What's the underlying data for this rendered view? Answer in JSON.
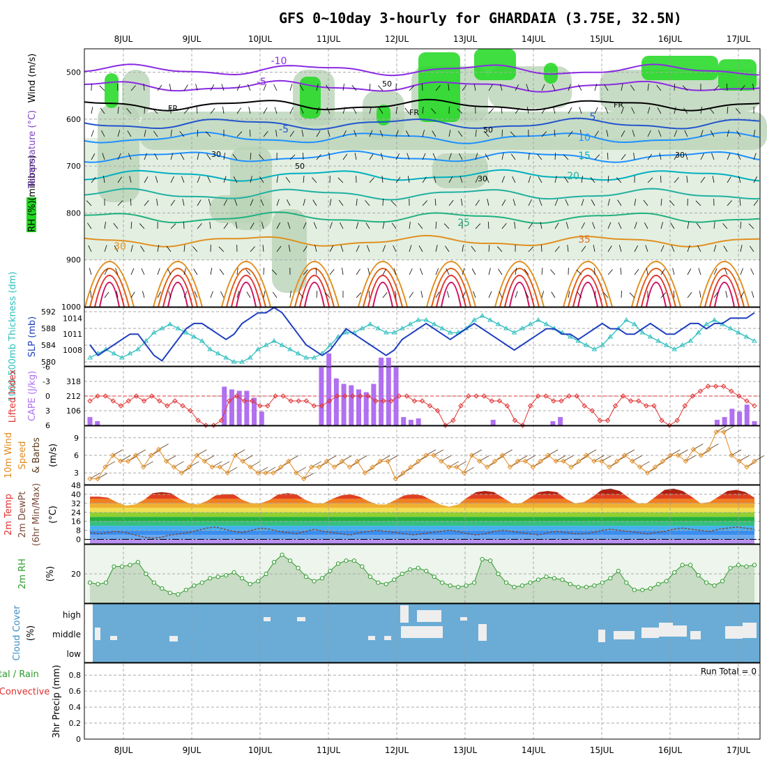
{
  "chart_data": {
    "type": "meteogram",
    "title": "GFS 0~10day 3-hourly for GHARDAIA (3.75E, 32.5N)",
    "dates": [
      "8JUL",
      "9JUL",
      "10JUL",
      "11JUL",
      "12JUL",
      "13JUL",
      "14JUL",
      "15JUL",
      "16JUL",
      "17JUL"
    ],
    "upper_air": {
      "ylabel_rh": "RH (%)",
      "ylabel_temp": "Temperature (°C)",
      "ylabel_wind": "Wind (m/s)",
      "ylabel_units": "(millibars)",
      "pressure_ticks": [
        "500",
        "600",
        "700",
        "800",
        "900",
        "1000"
      ],
      "pressure_values": [
        500,
        600,
        700,
        800,
        900,
        1000
      ],
      "ylim": [
        450,
        1000
      ],
      "freezing_label": "FR",
      "isotherm_labels": [
        {
          "text": "-10",
          "color": "#8a2be2"
        },
        {
          "text": "-5",
          "color": "#8a2be2"
        },
        {
          "text": "-5",
          "color": "#2255cc"
        },
        {
          "text": "5",
          "color": "#2255cc"
        },
        {
          "text": "10",
          "color": "#1e90ff"
        },
        {
          "text": "15",
          "color": "#00b0c0"
        },
        {
          "text": "20",
          "color": "#20b0a0"
        },
        {
          "text": "25",
          "color": "#20b080"
        },
        {
          "text": "30",
          "color": "#e09020"
        },
        {
          "text": "35",
          "color": "#e07020"
        }
      ],
      "rh_labels": [
        "50",
        "30",
        "50",
        "30",
        "50",
        "30"
      ]
    },
    "thickness_slp": {
      "ylabel_thickness": "1000-500mb Thickness (dm)",
      "ylabel_slp": "SLP (mb)",
      "thickness_ticks": [
        "592",
        "588",
        "584",
        "580"
      ],
      "slp_ticks": [
        "1014",
        "1011",
        "1008"
      ],
      "thickness_series": [
        581,
        582,
        583,
        582,
        581,
        582,
        583,
        585,
        587,
        588,
        589,
        588,
        587,
        586,
        585,
        583,
        582,
        581,
        580,
        580,
        581,
        583,
        584,
        585,
        584,
        583,
        582,
        581,
        581,
        582,
        584,
        586,
        587,
        587,
        588,
        589,
        588,
        587,
        587,
        588,
        589,
        590,
        590,
        589,
        588,
        587,
        587,
        588,
        590,
        591,
        590,
        589,
        588,
        587,
        588,
        589,
        590,
        589,
        588,
        587,
        586,
        585,
        584,
        583,
        584,
        586,
        588,
        590,
        589,
        587,
        586,
        585,
        584,
        583,
        584,
        585,
        587,
        589,
        590,
        589,
        588,
        587,
        586,
        585
      ],
      "slp_series": [
        1009,
        1007,
        1008,
        1009,
        1010,
        1011,
        1011,
        1009,
        1007,
        1006,
        1008,
        1010,
        1012,
        1013,
        1013,
        1012,
        1011,
        1010,
        1011,
        1013,
        1014,
        1015,
        1015,
        1016,
        1015,
        1013,
        1011,
        1009,
        1008,
        1007,
        1008,
        1010,
        1012,
        1011,
        1010,
        1009,
        1008,
        1007,
        1008,
        1010,
        1011,
        1012,
        1013,
        1012,
        1011,
        1010,
        1011,
        1012,
        1013,
        1012,
        1011,
        1010,
        1009,
        1008,
        1009,
        1010,
        1011,
        1012,
        1012,
        1011,
        1011,
        1010,
        1011,
        1012,
        1013,
        1012,
        1012,
        1011,
        1011,
        1012,
        1013,
        1012,
        1011,
        1011,
        1012,
        1013,
        1013,
        1012,
        1013,
        1013,
        1014,
        1014,
        1014,
        1015
      ]
    },
    "cape_li": {
      "ylabel_li": "Lifted Index",
      "ylabel_cape": "CAPE (J/kg)",
      "li_ticks": [
        "-6",
        "-3",
        "0",
        "3",
        "6"
      ],
      "cape_ticks": [
        "318",
        "212",
        "106"
      ],
      "cape_series": [
        60,
        30,
        0,
        0,
        0,
        0,
        0,
        0,
        0,
        0,
        0,
        0,
        0,
        0,
        0,
        0,
        0,
        0,
        280,
        260,
        250,
        250,
        200,
        100,
        0,
        0,
        0,
        0,
        0,
        0,
        0,
        420,
        520,
        340,
        300,
        290,
        260,
        240,
        300,
        490,
        490,
        420,
        60,
        40,
        50,
        0,
        0,
        0,
        0,
        0,
        0,
        0,
        0,
        0,
        40,
        0,
        0,
        0,
        0,
        0,
        0,
        0,
        30,
        60,
        0,
        0,
        0,
        0,
        0,
        0,
        0,
        0,
        0,
        0,
        0,
        0,
        0,
        0,
        0,
        0,
        0,
        0,
        0,
        0,
        40,
        60,
        120,
        100,
        150,
        30
      ],
      "li_series": [
        1,
        0,
        0,
        1,
        2,
        1,
        0,
        1,
        0,
        1,
        2,
        1,
        2,
        3,
        5,
        6,
        6,
        5,
        1,
        0,
        1,
        1,
        2,
        2,
        0,
        0,
        1,
        1,
        1,
        2,
        2,
        1,
        0,
        0,
        0,
        0,
        0,
        1,
        1,
        1,
        0,
        0,
        1,
        1,
        2,
        3,
        6,
        5,
        2,
        0,
        0,
        0,
        1,
        1,
        2,
        5,
        6,
        2,
        0,
        0,
        1,
        1,
        0,
        0,
        2,
        3,
        5,
        5,
        2,
        0,
        1,
        1,
        2,
        2,
        5,
        6,
        5,
        2,
        0,
        -1,
        -2,
        -2,
        -2,
        -1,
        0,
        1,
        2
      ]
    },
    "wind10m": {
      "ylabel_wind": "10m Wind",
      "ylabel_speed": "Speed",
      "ylabel_barbs": "& Barbs",
      "ylabel_units": "(m/s)",
      "ticks": [
        "9",
        "6",
        "3"
      ],
      "speed_series": [
        2,
        2,
        4,
        6,
        5,
        5,
        6,
        4,
        6,
        7,
        5,
        4,
        3,
        4,
        6,
        5,
        4,
        4,
        3,
        6,
        5,
        4,
        3,
        3,
        3,
        4,
        5,
        3,
        2,
        4,
        4,
        5,
        4,
        5,
        4,
        5,
        3,
        4,
        5,
        5,
        2,
        3,
        4,
        5,
        6,
        6,
        5,
        4,
        4,
        3,
        6,
        5,
        4,
        5,
        6,
        4,
        5,
        5,
        4,
        5,
        6,
        5,
        5,
        4,
        5,
        6,
        5,
        5,
        4,
        5,
        6,
        5,
        4,
        3,
        4,
        5,
        6,
        6,
        5,
        7,
        6,
        7,
        10,
        10,
        6,
        5,
        4,
        5
      ]
    },
    "temp2m": {
      "ylabel_temp": "2m Temp",
      "ylabel_dewpt": "2m DewPt",
      "ylabel_minmax": "(6hr Min/Max)",
      "ylabel_units": "(°C)",
      "ticks": [
        "48",
        "40",
        "32",
        "24",
        "16",
        "8",
        "0"
      ],
      "temp_series": [
        38,
        38,
        37,
        33,
        30,
        31,
        35,
        41,
        42,
        41,
        36,
        32,
        31,
        34,
        39,
        40,
        40,
        35,
        32,
        32,
        35,
        40,
        41,
        40,
        35,
        32,
        32,
        36,
        39,
        40,
        38,
        34,
        31,
        31,
        35,
        39,
        40,
        39,
        35,
        31,
        29,
        31,
        37,
        42,
        43,
        42,
        37,
        32,
        32,
        37,
        42,
        43,
        42,
        36,
        32,
        33,
        38,
        44,
        45,
        43,
        37,
        32,
        32,
        38,
        44,
        45,
        43,
        38,
        32,
        33,
        38,
        43,
        44,
        42,
        37
      ],
      "dewpoint_series": [
        6,
        5,
        6,
        7,
        6,
        4,
        2,
        1,
        2,
        4,
        5,
        6,
        8,
        10,
        11,
        9,
        7,
        6,
        8,
        10,
        9,
        7,
        6,
        5,
        7,
        9,
        7,
        6,
        5,
        4,
        6,
        7,
        8,
        7,
        6,
        5,
        4,
        5,
        6,
        7,
        8,
        7,
        5,
        4,
        5,
        7,
        8,
        7,
        6,
        5,
        4,
        6,
        7,
        6,
        5,
        5,
        6,
        8,
        9,
        8,
        7,
        6,
        5,
        6,
        7,
        9,
        10,
        9,
        8,
        7,
        9,
        10,
        11,
        10,
        9
      ]
    },
    "rh2m": {
      "ylabel": "2m RH",
      "ylabel_units": "(%)",
      "ticks": [
        "20"
      ],
      "series": [
        14,
        13,
        14,
        25,
        25,
        26,
        28,
        20,
        14,
        10,
        7,
        6,
        9,
        12,
        14,
        17,
        18,
        19,
        21,
        17,
        13,
        15,
        20,
        28,
        33,
        29,
        24,
        18,
        15,
        17,
        22,
        27,
        29,
        29,
        25,
        18,
        14,
        13,
        16,
        20,
        23,
        24,
        22,
        18,
        14,
        12,
        11,
        12,
        14,
        30,
        29,
        20,
        14,
        11,
        12,
        14,
        16,
        18,
        17,
        16,
        13,
        11,
        11,
        12,
        14,
        17,
        22,
        14,
        9,
        9,
        10,
        13,
        15,
        21,
        26,
        26,
        19,
        14,
        12,
        15,
        24,
        26,
        25,
        26
      ]
    },
    "cloud": {
      "ylabel": "Cloud Cover",
      "ylabel_units": "(%)",
      "levels": [
        "high",
        "middle",
        "low"
      ]
    },
    "precip": {
      "ylabel_total": "Total / Rain",
      "ylabel_conv": "Convective",
      "ylabel_units": "3hr Precip (mm)",
      "ticks": [
        "0.8",
        "0.6",
        "0.4",
        "0.2",
        "0"
      ],
      "run_total": "Run Total = 0"
    },
    "colors": {
      "rh_green": "#1fd81f",
      "rh_light": "#e3efe1",
      "rh_mid": "#b9d3b6",
      "slp": "#1f3fbf",
      "thickness": "#2fbfbf",
      "cape": "#b070f0",
      "li": "#e03030",
      "wind_speed": "#e08a20",
      "rh2m": "#2d9b2d",
      "cloud_bg": "#6aacd6"
    }
  }
}
